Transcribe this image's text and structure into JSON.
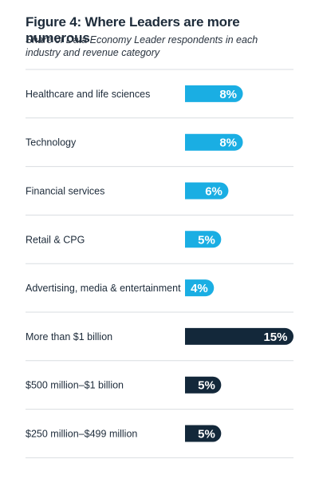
{
  "header": {
    "title": "Figure 4: Where Leaders are more numerous",
    "subtitle": "Share of Data Economy Leader respondents in each industry and revenue category"
  },
  "colors": {
    "industry": "#1aaee3",
    "revenue": "#13283a",
    "label_text": "#ffffff",
    "divider": "#d9dde1",
    "category_text": "#1d2b3a"
  },
  "chart_data": {
    "type": "bar",
    "orientation": "horizontal",
    "categories": [
      "Healthcare and life sciences",
      "Technology",
      "Financial services",
      "Retail &  CPG",
      "Advertising, media & entertainment",
      "More than $1 billion",
      "$500 million–$1 billion",
      "$250 million–$499 million"
    ],
    "values": [
      8,
      8,
      6,
      5,
      4,
      15,
      5,
      5
    ],
    "value_labels": [
      "8%",
      "8%",
      "6%",
      "5%",
      "4%",
      "15%",
      "5%",
      "5%"
    ],
    "groups": [
      "industry",
      "industry",
      "industry",
      "industry",
      "industry",
      "revenue",
      "revenue",
      "revenue"
    ],
    "unit": "%",
    "xlim": [
      0,
      15
    ]
  }
}
